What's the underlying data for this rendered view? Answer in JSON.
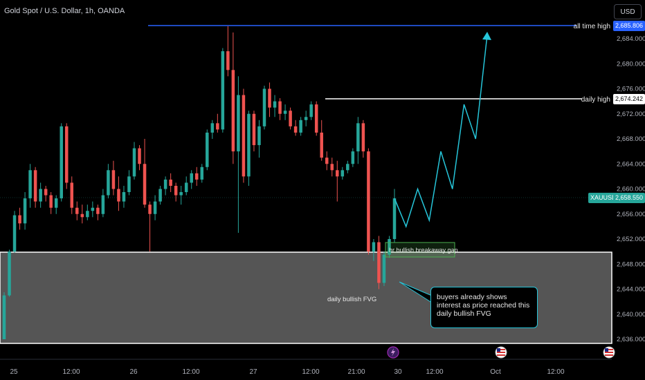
{
  "header": {
    "title": "Gold Spot / U.S. Dollar, 1h, OANDA",
    "currency": "USD"
  },
  "colors": {
    "up": "#26a69a",
    "down": "#ef5350",
    "zone_fill": "#555555",
    "zone_border": "#ffffff",
    "ath_line": "#2962ff",
    "projection": "#26c6da",
    "gap_box": "#4caf50",
    "price_label_bg": "#26a69a"
  },
  "annotations": {
    "all_time_high_label": "all time high",
    "daily_high_label": "daily high",
    "fvg_label": "daily bullish FVG",
    "gap_label": "hr bullish breakaway gap",
    "callout_text": "buyers already shows interest as price reached this daily bullish FVG",
    "symbol_tag": "XAUUSD"
  },
  "price_labels": {
    "ath": "2,685.806",
    "daily_high": "2,674.242",
    "current": "2,658.550"
  },
  "chart_data": {
    "type": "candlestick",
    "title": "Gold Spot / U.S. Dollar, 1h, OANDA",
    "y_axis": {
      "ticks": [
        "2,684.000",
        "2,680.000",
        "2,676.000",
        "2,672.000",
        "2,668.000",
        "2,664.000",
        "2,660.000",
        "2,656.000",
        "2,652.000",
        "2,648.000",
        "2,644.000",
        "2,640.000",
        "2,636.000"
      ],
      "ylim": [
        2634.0,
        2688.0
      ],
      "position": "right"
    },
    "x_axis": {
      "ticks": [
        "25",
        "12:00",
        "26",
        "12:00",
        "27",
        "12:00",
        "21:00",
        "30",
        "12:00",
        "Oct",
        "12:00"
      ]
    },
    "levels": [
      {
        "name": "all time high",
        "price": 2685.806
      },
      {
        "name": "daily high",
        "price": 2674.242
      },
      {
        "name": "current",
        "price": 2658.55
      }
    ],
    "fvg_zone": [
      2635.2,
      2650.1
    ],
    "projection_path": [
      2658.5,
      2654.0,
      2660.0,
      2655.0,
      2666.0,
      2660.0,
      2673.5,
      2668.0,
      2684.6
    ],
    "candles": [
      [
        2636.0,
        2643.5,
        2636.0,
        2643.0
      ],
      [
        2643.0,
        2650.3,
        2642.8,
        2650.0
      ],
      [
        2650.0,
        2656.5,
        2649.8,
        2655.8
      ],
      [
        2655.8,
        2657.0,
        2653.5,
        2654.5
      ],
      [
        2654.5,
        2659.5,
        2653.5,
        2658.5
      ],
      [
        2658.5,
        2664.0,
        2657.0,
        2663.0
      ],
      [
        2663.0,
        2663.5,
        2657.0,
        2658.0
      ],
      [
        2658.0,
        2661.0,
        2657.0,
        2660.0
      ],
      [
        2660.0,
        2660.5,
        2658.0,
        2659.0
      ],
      [
        2659.0,
        2659.5,
        2656.0,
        2657.0
      ],
      [
        2657.0,
        2659.0,
        2656.0,
        2658.5
      ],
      [
        2658.5,
        2670.5,
        2658.0,
        2670.0
      ],
      [
        2670.0,
        2670.5,
        2660.0,
        2661.0
      ],
      [
        2661.0,
        2662.0,
        2656.0,
        2657.0
      ],
      [
        2657.0,
        2658.0,
        2655.0,
        2656.0
      ],
      [
        2656.0,
        2657.5,
        2654.5,
        2655.5
      ],
      [
        2655.5,
        2657.5,
        2655.0,
        2656.5
      ],
      [
        2656.5,
        2658.0,
        2655.5,
        2657.0
      ],
      [
        2657.0,
        2657.5,
        2655.0,
        2656.0
      ],
      [
        2656.0,
        2660.0,
        2655.5,
        2659.0
      ],
      [
        2659.0,
        2664.0,
        2658.5,
        2663.0
      ],
      [
        2663.0,
        2664.5,
        2659.0,
        2660.0
      ],
      [
        2660.0,
        2662.0,
        2656.5,
        2658.0
      ],
      [
        2658.0,
        2660.5,
        2657.0,
        2659.5
      ],
      [
        2659.5,
        2663.0,
        2659.0,
        2662.0
      ],
      [
        2662.0,
        2667.5,
        2661.5,
        2666.5
      ],
      [
        2666.5,
        2667.0,
        2663.0,
        2664.0
      ],
      [
        2664.0,
        2668.0,
        2657.0,
        2657.5
      ],
      [
        2657.5,
        2658.0,
        2650.0,
        2656.0
      ],
      [
        2656.0,
        2659.0,
        2655.0,
        2658.0
      ],
      [
        2658.0,
        2660.5,
        2657.5,
        2660.0
      ],
      [
        2660.0,
        2662.0,
        2659.0,
        2661.5
      ],
      [
        2661.5,
        2662.5,
        2659.5,
        2660.5
      ],
      [
        2660.5,
        2661.0,
        2658.0,
        2659.0
      ],
      [
        2659.0,
        2660.5,
        2657.5,
        2659.5
      ],
      [
        2659.5,
        2662.0,
        2659.0,
        2661.0
      ],
      [
        2661.0,
        2663.0,
        2660.0,
        2662.5
      ],
      [
        2662.5,
        2663.5,
        2660.5,
        2661.5
      ],
      [
        2661.5,
        2664.0,
        2661.0,
        2663.5
      ],
      [
        2663.5,
        2669.5,
        2663.0,
        2669.0
      ],
      [
        2669.0,
        2671.0,
        2668.0,
        2670.5
      ],
      [
        2670.5,
        2672.0,
        2669.0,
        2669.5
      ],
      [
        2669.5,
        2682.5,
        2669.0,
        2682.0
      ],
      [
        2682.0,
        2686.0,
        2678.0,
        2679.0
      ],
      [
        2679.0,
        2685.0,
        2664.0,
        2666.0
      ],
      [
        2666.0,
        2678.0,
        2653.0,
        2675.0
      ],
      [
        2675.0,
        2676.0,
        2661.0,
        2662.0
      ],
      [
        2662.0,
        2672.5,
        2660.5,
        2672.0
      ],
      [
        2672.0,
        2672.5,
        2666.0,
        2667.0
      ],
      [
        2667.0,
        2671.0,
        2665.0,
        2670.0
      ],
      [
        2670.0,
        2676.5,
        2669.5,
        2676.0
      ],
      [
        2676.0,
        2677.0,
        2671.5,
        2673.0
      ],
      [
        2673.0,
        2675.0,
        2671.5,
        2674.0
      ],
      [
        2674.0,
        2674.5,
        2671.0,
        2672.0
      ],
      [
        2672.0,
        2673.5,
        2671.0,
        2672.5
      ],
      [
        2672.5,
        2673.0,
        2669.5,
        2670.0
      ],
      [
        2670.0,
        2671.0,
        2668.5,
        2669.0
      ],
      [
        2669.0,
        2671.5,
        2668.5,
        2671.0
      ],
      [
        2671.0,
        2672.5,
        2670.0,
        2671.5
      ],
      [
        2671.5,
        2674.0,
        2671.0,
        2673.5
      ],
      [
        2673.5,
        2674.0,
        2668.5,
        2669.0
      ],
      [
        2669.0,
        2671.0,
        2664.5,
        2665.0
      ],
      [
        2665.0,
        2666.0,
        2663.0,
        2664.0
      ],
      [
        2664.0,
        2665.0,
        2662.0,
        2663.0
      ],
      [
        2663.0,
        2664.5,
        2658.0,
        2662.0
      ],
      [
        2662.0,
        2663.5,
        2661.5,
        2663.0
      ],
      [
        2663.0,
        2664.5,
        2662.5,
        2664.0
      ],
      [
        2664.0,
        2666.5,
        2663.5,
        2666.0
      ],
      [
        2666.0,
        2671.5,
        2664.0,
        2670.5
      ],
      [
        2670.5,
        2671.0,
        2665.0,
        2666.0
      ],
      [
        2666.0,
        2666.5,
        2649.5,
        2650.0
      ],
      [
        2650.0,
        2652.0,
        2648.5,
        2651.5
      ],
      [
        2651.5,
        2652.5,
        2644.0,
        2645.0
      ],
      [
        2645.0,
        2650.0,
        2644.5,
        2649.5
      ],
      [
        2649.5,
        2652.5,
        2649.0,
        2652.0
      ],
      [
        2652.0,
        2660.0,
        2651.5,
        2658.5
      ]
    ]
  }
}
